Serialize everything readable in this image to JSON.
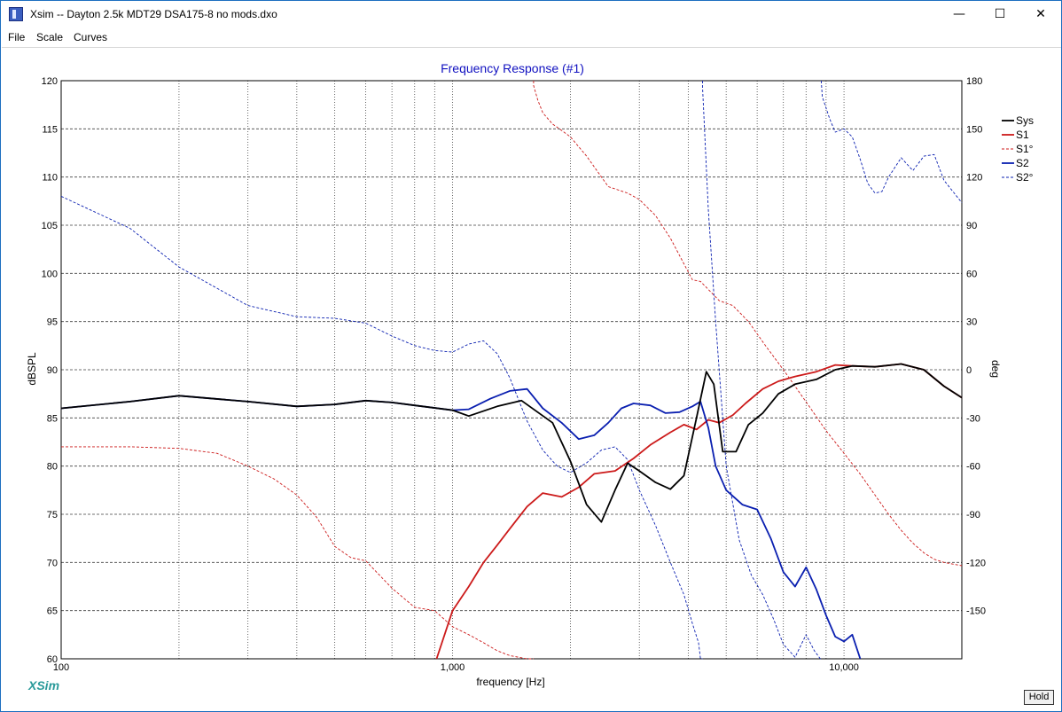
{
  "window": {
    "title": "Xsim -- Dayton 2.5k MDT29 DSA175-8 no mods.dxo",
    "minimize_glyph": "—",
    "maximize_glyph": "☐",
    "close_glyph": "✕"
  },
  "menu": {
    "file": "File",
    "scale": "Scale",
    "curves": "Curves"
  },
  "brand": "XSim",
  "hold_label": "Hold",
  "chart_data": {
    "type": "line",
    "title": "Frequency Response (#1)",
    "xlabel": "frequency [Hz]",
    "ylabel": "dBSPL",
    "y2label": "deg",
    "xscale": "log",
    "xlim": [
      100,
      20000
    ],
    "ylim": [
      60,
      120
    ],
    "y2lim": [
      -180,
      180
    ],
    "grid": true,
    "legend_position": "right",
    "x_ticks": [
      100,
      1000,
      10000
    ],
    "x_tick_labels": [
      "100",
      "1,000",
      "10,000"
    ],
    "y_ticks": [
      120,
      115,
      110,
      105,
      100,
      95,
      90,
      85,
      80,
      75,
      70,
      65,
      60
    ],
    "y2_ticks": [
      180,
      150,
      120,
      90,
      60,
      30,
      0,
      -30,
      -60,
      -90,
      -120,
      -150
    ],
    "colors": {
      "sys": "#000000",
      "s1": "#cc1a1a",
      "s2": "#0a1fb0",
      "title": "#1010c0",
      "grid": "#404040"
    },
    "series": [
      {
        "name": "Sys",
        "axis": "left",
        "style": "solid",
        "x": [
          100,
          150,
          200,
          300,
          400,
          500,
          600,
          700,
          800,
          1000,
          1100,
          1300,
          1500,
          1800,
          2000,
          2200,
          2400,
          2600,
          2800,
          3000,
          3300,
          3600,
          3900,
          4200,
          4450,
          4650,
          4900,
          5300,
          5700,
          6200,
          6800,
          7500,
          8500,
          9500,
          10500,
          12000,
          14000,
          16000,
          18000,
          20000
        ],
        "values": [
          86.0,
          86.7,
          87.3,
          86.7,
          86.2,
          86.4,
          86.8,
          86.6,
          86.3,
          85.8,
          85.2,
          86.2,
          86.8,
          84.5,
          80.5,
          76.0,
          74.2,
          77.5,
          80.3,
          79.5,
          78.3,
          77.6,
          79.0,
          85.0,
          89.8,
          88.5,
          81.5,
          81.5,
          84.3,
          85.5,
          87.5,
          88.5,
          89.0,
          90.0,
          90.4,
          90.3,
          90.6,
          90.0,
          88.3,
          87.1
        ]
      },
      {
        "name": "S1",
        "axis": "left",
        "style": "solid",
        "x": [
          910,
          1000,
          1100,
          1200,
          1300,
          1400,
          1550,
          1700,
          1900,
          2100,
          2300,
          2600,
          2900,
          3200,
          3600,
          3900,
          4200,
          4500,
          4800,
          5200,
          5600,
          6200,
          6800,
          7500,
          8500,
          9500,
          10500,
          12000,
          14000,
          16000,
          18000,
          20000
        ],
        "values": [
          60.0,
          65.0,
          67.5,
          70.0,
          71.8,
          73.5,
          75.8,
          77.2,
          76.8,
          77.8,
          79.2,
          79.5,
          80.8,
          82.2,
          83.5,
          84.3,
          83.8,
          84.8,
          84.5,
          85.3,
          86.5,
          88.0,
          88.8,
          89.3,
          89.8,
          90.5,
          90.4,
          90.3,
          90.6,
          90.0,
          88.3,
          87.1
        ]
      },
      {
        "name": "S1°",
        "axis": "right",
        "style": "dashed",
        "x": [
          100,
          150,
          200,
          250,
          300,
          350,
          400,
          450,
          500,
          550,
          600,
          700,
          800,
          900,
          1000,
          1100,
          1200,
          1300,
          1400,
          1550,
          1600,
          1610,
          1650,
          1700,
          1800,
          1900,
          2000,
          2200,
          2500,
          2800,
          3000,
          3300,
          3600,
          3900,
          4100,
          4300,
          4500,
          4800,
          5200,
          5700,
          6300,
          7000,
          8000,
          9000,
          10000,
          11000,
          12000,
          13000,
          14000,
          15000,
          16000,
          17000,
          18000,
          20000
        ],
        "values": [
          -48,
          -48,
          -49,
          -52,
          -60,
          -68,
          -78,
          -92,
          -110,
          -117,
          -119,
          -136,
          -148,
          -150,
          -160,
          -165,
          -170,
          -175,
          -178,
          -181,
          -183,
          177,
          168,
          160,
          153,
          149,
          145,
          133,
          114,
          110,
          106,
          96,
          82,
          66,
          56,
          55,
          50,
          43,
          40,
          30,
          15,
          0,
          -20,
          -38,
          -52,
          -65,
          -78,
          -90,
          -100,
          -108,
          -114,
          -118,
          -120,
          -122
        ]
      },
      {
        "name": "S2",
        "axis": "left",
        "style": "solid",
        "x": [
          100,
          150,
          200,
          300,
          400,
          500,
          600,
          700,
          800,
          1000,
          1100,
          1250,
          1400,
          1550,
          1700,
          1900,
          2100,
          2300,
          2500,
          2700,
          2900,
          3200,
          3500,
          3800,
          4100,
          4300,
          4500,
          4700,
          5000,
          5500,
          6000,
          6500,
          7000,
          7500,
          8000,
          8500,
          9000,
          9500,
          10000,
          10500,
          11000
        ],
        "values": [
          86.0,
          86.7,
          87.3,
          86.7,
          86.2,
          86.4,
          86.8,
          86.6,
          86.3,
          85.8,
          85.9,
          87.0,
          87.8,
          88.0,
          86.0,
          84.5,
          82.8,
          83.2,
          84.5,
          86.0,
          86.5,
          86.3,
          85.5,
          85.6,
          86.2,
          86.7,
          84.0,
          80.0,
          77.5,
          76.0,
          75.5,
          72.5,
          69.0,
          67.5,
          69.5,
          67.2,
          64.5,
          62.3,
          61.8,
          62.5,
          60.0
        ]
      },
      {
        "name": "S2°",
        "axis": "right",
        "style": "dashed",
        "x": [
          100,
          150,
          200,
          300,
          400,
          500,
          600,
          700,
          800,
          900,
          1000,
          1100,
          1200,
          1300,
          1400,
          1550,
          1700,
          1850,
          2000,
          2200,
          2400,
          2600,
          2800,
          3000,
          3300,
          3600,
          3900,
          4100,
          4250,
          4300,
          4350,
          4500,
          4700,
          5000,
          5400,
          5800,
          6200,
          6600,
          7000,
          7500,
          8000,
          8400,
          8700,
          8750,
          8800,
          9200,
          9500,
          10000,
          10500,
          11000,
          11500,
          12000,
          12500,
          13000,
          14000,
          15000,
          16000,
          17000,
          18000,
          20000
        ],
        "values": [
          108,
          88,
          64,
          40,
          33,
          32,
          29,
          21,
          15,
          12,
          11,
          16,
          18,
          10,
          -5,
          -32,
          -50,
          -60,
          -64,
          -58,
          -50,
          -48,
          -56,
          -75,
          -97,
          -120,
          -140,
          -158,
          -170,
          -184,
          176,
          100,
          30,
          -60,
          -106,
          -128,
          -140,
          -155,
          -171,
          -179,
          -165,
          -175,
          -181,
          179,
          170,
          156,
          148,
          150,
          145,
          131,
          116,
          110,
          111,
          120,
          132,
          124,
          133,
          134,
          118,
          104
        ]
      }
    ]
  }
}
